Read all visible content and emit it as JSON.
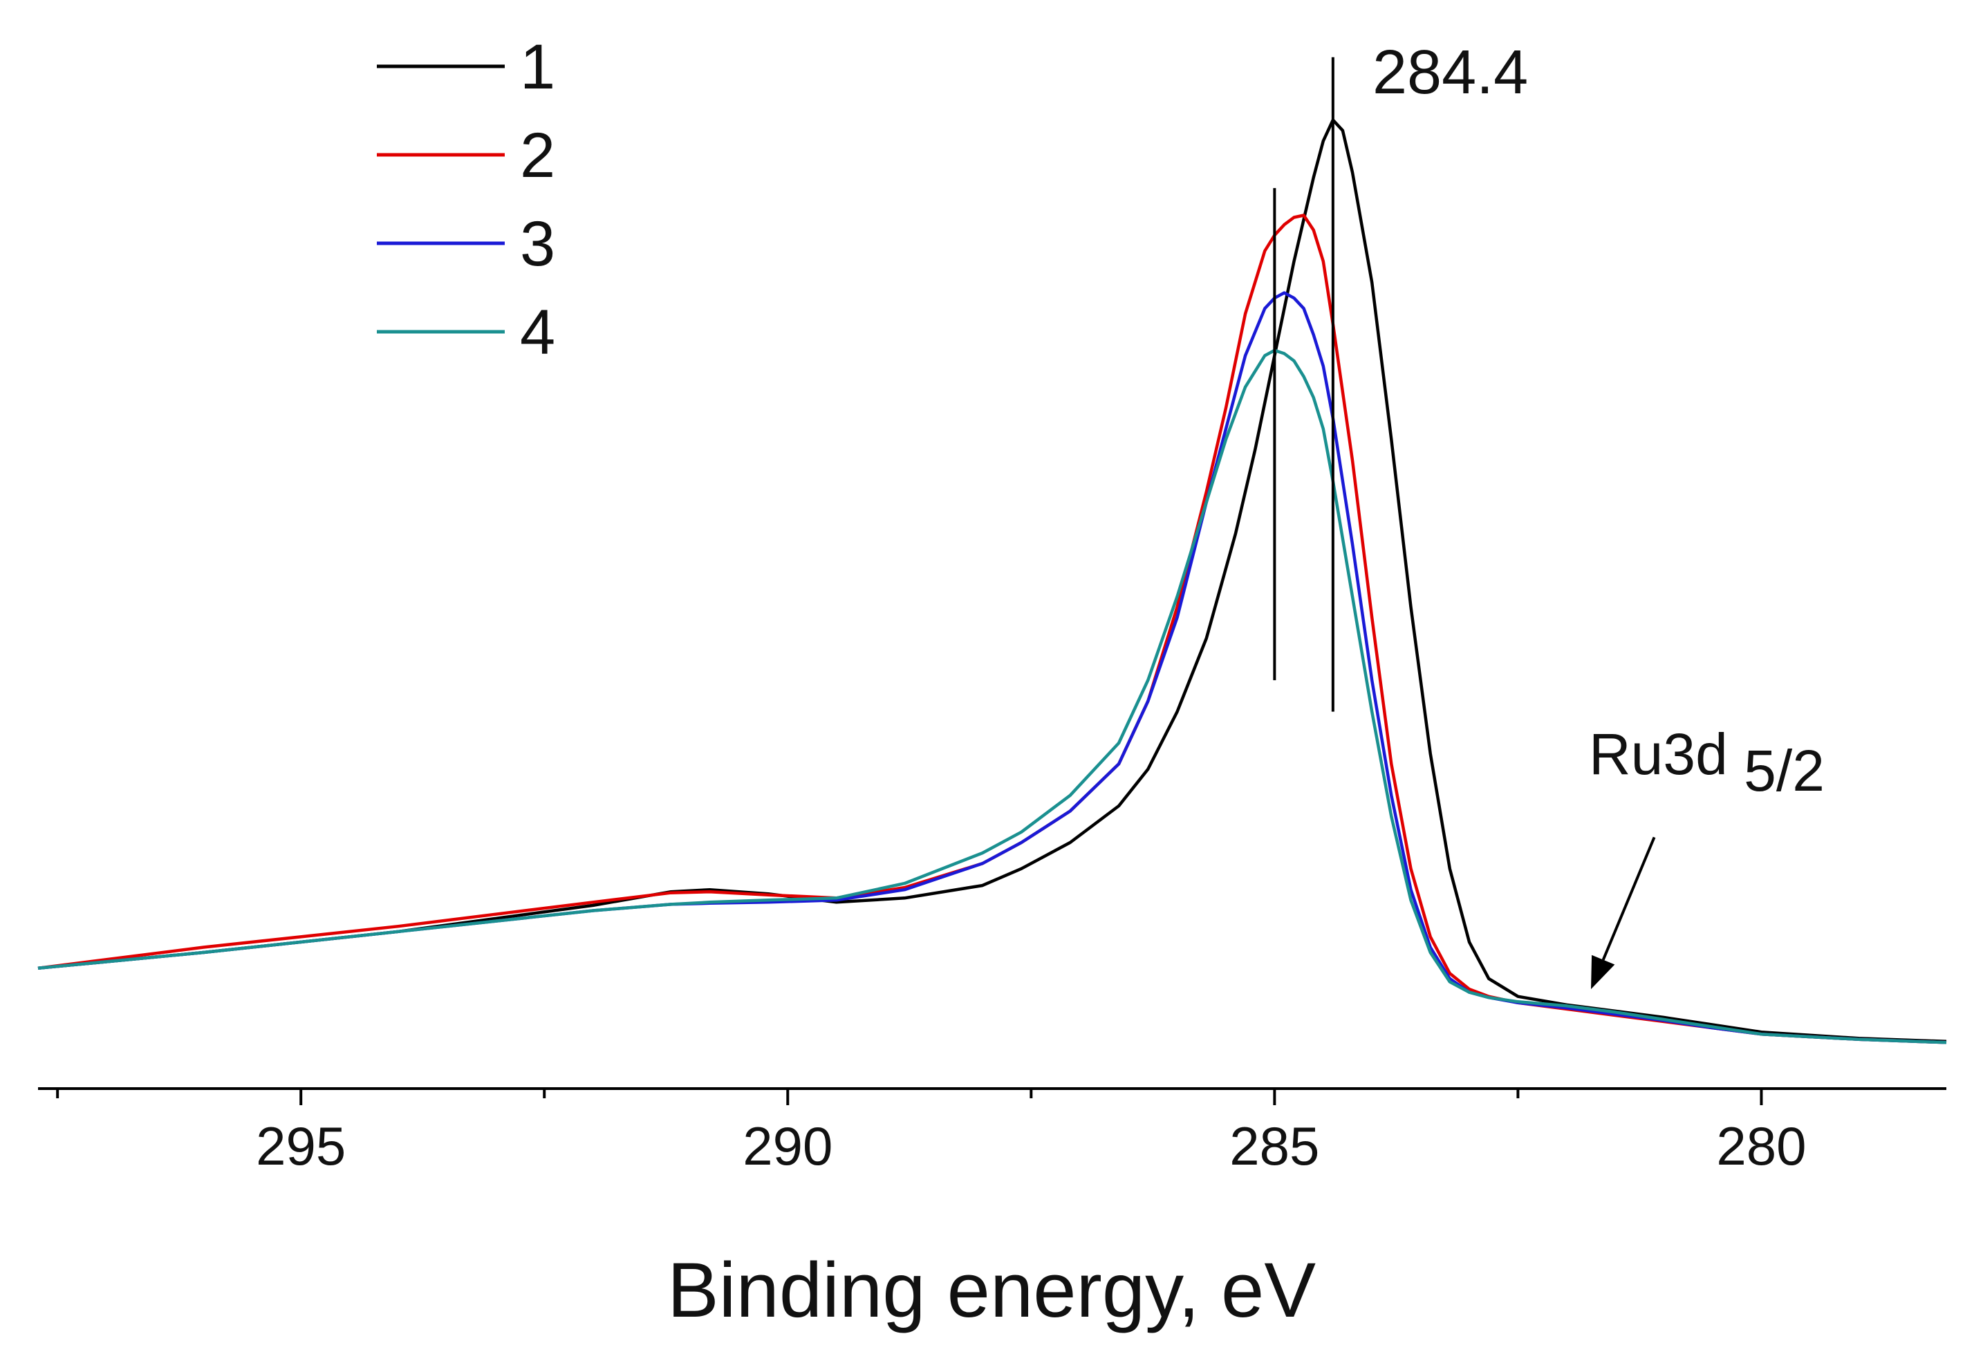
{
  "chart_data": {
    "type": "line",
    "title": "",
    "xlabel": "Binding energy, eV",
    "ylabel": "",
    "x_reversed": true,
    "xlim": [
      297.7,
      278.1
    ],
    "ylim": [
      0,
      1
    ],
    "grid": false,
    "legend_position": "top-left",
    "x_ticks_major": [
      295,
      290,
      285,
      280
    ],
    "x_tick_labels": [
      "295",
      "290",
      "285",
      "280"
    ],
    "x_ticks_minor": [
      297.5,
      292.5,
      287.5,
      282.5
    ],
    "series": [
      {
        "name": "1",
        "color": "#000000",
        "x": [
          297.7,
          296,
          294,
          292,
          291.2,
          290.8,
          290.2,
          289.5,
          288.8,
          288,
          287.6,
          287.1,
          286.6,
          286.3,
          286.0,
          285.7,
          285.4,
          285.2,
          285.0,
          284.8,
          284.6,
          284.5,
          284.4,
          284.3,
          284.2,
          284.0,
          283.8,
          283.6,
          283.4,
          283.2,
          283.0,
          282.8,
          282.5,
          282.0,
          281.5,
          281.0,
          280.5,
          280,
          279,
          278.1
        ],
        "y": [
          0.115,
          0.13,
          0.15,
          0.175,
          0.188,
          0.19,
          0.186,
          0.178,
          0.182,
          0.194,
          0.21,
          0.235,
          0.27,
          0.305,
          0.36,
          0.43,
          0.53,
          0.61,
          0.7,
          0.79,
          0.87,
          0.905,
          0.925,
          0.915,
          0.875,
          0.77,
          0.62,
          0.46,
          0.32,
          0.21,
          0.14,
          0.105,
          0.088,
          0.08,
          0.074,
          0.068,
          0.061,
          0.054,
          0.048,
          0.045
        ]
      },
      {
        "name": "2",
        "color": "#e00000",
        "x": [
          297.7,
          296,
          294,
          292,
          291.2,
          290.8,
          290.2,
          289.5,
          288.8,
          288,
          287.6,
          287.1,
          286.6,
          286.3,
          286.0,
          285.7,
          285.5,
          285.3,
          285.1,
          285.0,
          284.9,
          284.8,
          284.7,
          284.6,
          284.5,
          284.4,
          284.2,
          284.0,
          283.8,
          283.6,
          283.4,
          283.2,
          283.0,
          282.8,
          282.5,
          282.0,
          281.5,
          281.0,
          280.5,
          280,
          279,
          278.1
        ],
        "y": [
          0.115,
          0.135,
          0.155,
          0.178,
          0.187,
          0.188,
          0.185,
          0.182,
          0.192,
          0.215,
          0.235,
          0.265,
          0.31,
          0.37,
          0.46,
          0.57,
          0.65,
          0.74,
          0.8,
          0.815,
          0.825,
          0.832,
          0.834,
          0.82,
          0.79,
          0.73,
          0.6,
          0.45,
          0.31,
          0.21,
          0.145,
          0.11,
          0.095,
          0.088,
          0.082,
          0.076,
          0.07,
          0.064,
          0.058,
          0.052,
          0.047,
          0.044
        ]
      },
      {
        "name": "3",
        "color": "#1a1ad6",
        "x": [
          297.7,
          296,
          294,
          292,
          291.2,
          290.8,
          290.2,
          289.5,
          288.8,
          288,
          287.6,
          287.1,
          286.6,
          286.3,
          286.0,
          285.7,
          285.5,
          285.3,
          285.1,
          285.0,
          284.9,
          284.8,
          284.7,
          284.6,
          284.5,
          284.4,
          284.2,
          284.0,
          283.8,
          283.6,
          283.4,
          283.2,
          283.0,
          282.8,
          282.5,
          282.0,
          281.5,
          281.0,
          280.5,
          280,
          279,
          278.1
        ],
        "y": [
          0.115,
          0.13,
          0.15,
          0.17,
          0.176,
          0.177,
          0.178,
          0.18,
          0.19,
          0.215,
          0.235,
          0.265,
          0.31,
          0.37,
          0.45,
          0.56,
          0.63,
          0.7,
          0.745,
          0.755,
          0.76,
          0.755,
          0.745,
          0.72,
          0.69,
          0.64,
          0.52,
          0.39,
          0.28,
          0.19,
          0.135,
          0.105,
          0.092,
          0.087,
          0.082,
          0.077,
          0.071,
          0.065,
          0.058,
          0.052,
          0.047,
          0.044
        ]
      },
      {
        "name": "4",
        "color": "#1a9090",
        "x": [
          297.7,
          296,
          294,
          292,
          291.2,
          290.8,
          290.2,
          289.5,
          288.8,
          288,
          287.6,
          287.1,
          286.6,
          286.3,
          286.0,
          285.7,
          285.5,
          285.3,
          285.1,
          285.0,
          284.9,
          284.8,
          284.7,
          284.6,
          284.5,
          284.4,
          284.2,
          284.0,
          283.8,
          283.6,
          283.4,
          283.2,
          283.0,
          282.8,
          282.5,
          282.0,
          281.5,
          281.0,
          280.5,
          280,
          279,
          278.1
        ],
        "y": [
          0.115,
          0.13,
          0.15,
          0.17,
          0.176,
          0.178,
          0.18,
          0.182,
          0.196,
          0.225,
          0.245,
          0.28,
          0.33,
          0.39,
          0.47,
          0.56,
          0.62,
          0.67,
          0.7,
          0.705,
          0.702,
          0.695,
          0.68,
          0.66,
          0.63,
          0.58,
          0.47,
          0.36,
          0.26,
          0.18,
          0.13,
          0.102,
          0.092,
          0.087,
          0.083,
          0.079,
          0.073,
          0.066,
          0.059,
          0.052,
          0.047,
          0.044
        ]
      }
    ],
    "reference_lines": [
      {
        "x": 285.0,
        "y_from": 0.39,
        "y_to": 0.86
      },
      {
        "x": 284.4,
        "y_from": 0.36,
        "y_to": 0.985
      }
    ],
    "annotations": [
      {
        "id": "peak",
        "text": "284.4",
        "x": 284.1,
        "y": 0.96
      },
      {
        "id": "ru",
        "text": "Ru3d",
        "sub": "5/2",
        "x": 281.6,
        "y": 0.285,
        "arrow_from": [
          281.1,
          0.24
        ],
        "arrow_to": [
          281.75,
          0.095
        ]
      }
    ]
  }
}
